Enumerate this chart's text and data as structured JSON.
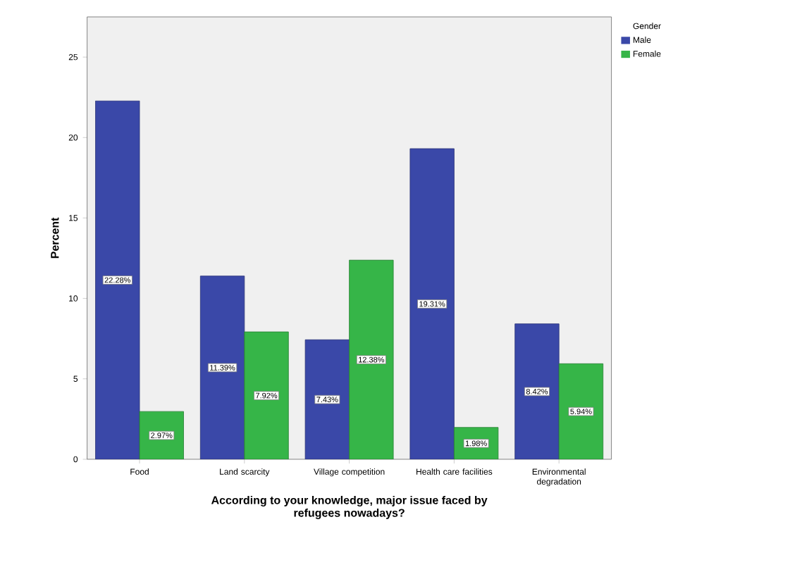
{
  "chart_data": {
    "type": "bar",
    "xlabel": "According to your knowledge, major issue faced by refugees nowadays?",
    "ylabel": "Percent",
    "legend_title": "Gender",
    "legend": "top right",
    "grid": false,
    "categories": [
      "Food",
      "Land scarcity",
      "Village competition",
      "Health care facilities",
      "Environmental degradation"
    ],
    "ylim": [
      0,
      27.5
    ],
    "yticks": [
      0,
      5,
      10,
      15,
      20,
      25
    ],
    "series": [
      {
        "name": "Male",
        "color": "#3a48a8",
        "values": [
          22.28,
          11.39,
          7.43,
          19.31,
          8.42
        ],
        "value_labels": [
          "22.28%",
          "11.39%",
          "7.43%",
          "19.31%",
          "8.42%"
        ]
      },
      {
        "name": "Female",
        "color": "#36b548",
        "values": [
          2.97,
          7.92,
          12.38,
          1.98,
          5.94
        ],
        "value_labels": [
          "2.97%",
          "7.92%",
          "12.38%",
          "1.98%",
          "5.94%"
        ]
      }
    ]
  }
}
